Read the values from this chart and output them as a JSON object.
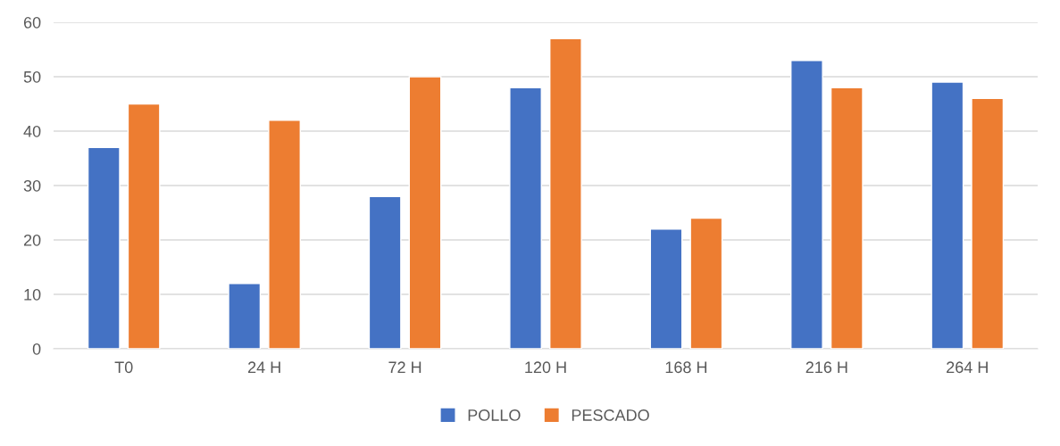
{
  "chart_data": {
    "type": "bar",
    "categories": [
      "T0",
      "24 H",
      "72 H",
      "120 H",
      "168 H",
      "216 H",
      "264 H"
    ],
    "series": [
      {
        "name": "POLLO",
        "color": "#4472c4",
        "values": [
          37,
          12,
          28,
          48,
          22,
          53,
          49
        ]
      },
      {
        "name": "PESCADO",
        "color": "#ed7d31",
        "values": [
          45,
          42,
          50,
          57,
          24,
          48,
          46
        ]
      }
    ],
    "ylim": [
      0,
      60
    ],
    "yticks": [
      0,
      10,
      20,
      30,
      40,
      50,
      60
    ],
    "grid": "y",
    "legend": "bottom"
  }
}
